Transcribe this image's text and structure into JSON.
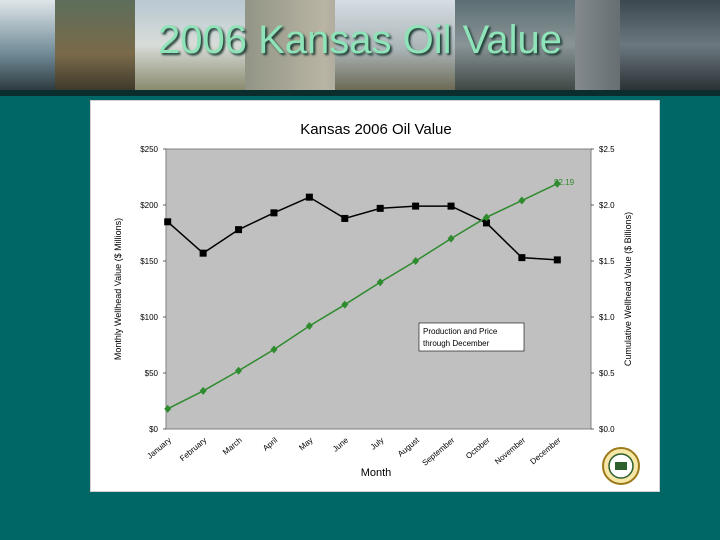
{
  "slide": {
    "title": "2006 Kansas Oil Value"
  },
  "colors": {
    "background": "#006666",
    "title_text": "#8fe3b8",
    "monthly_series": "#000000",
    "cumulative_series": "#2e8b2e",
    "plot_area": "#c0c0c0"
  },
  "chart_data": {
    "type": "line",
    "title": "Kansas 2006 Oil Value",
    "xlabel": "Month",
    "ylabel_left": "Monthly Wellhead Value ($ Millions)",
    "ylabel_right": "Cumulative Wellhead Value ($ Billions)",
    "categories": [
      "January",
      "February",
      "March",
      "April",
      "May",
      "June",
      "July",
      "August",
      "September",
      "October",
      "November",
      "December"
    ],
    "left_axis": {
      "ylim": [
        0,
        250
      ],
      "ticks": [
        "$0",
        "$50",
        "$100",
        "$150",
        "$200",
        "$250"
      ]
    },
    "right_axis": {
      "ylim": [
        0,
        2.5
      ],
      "ticks": [
        "$0.0",
        "$0.5",
        "$1.0",
        "$1.5",
        "$2.0",
        "$2.5"
      ]
    },
    "grid": false,
    "series": [
      {
        "axis": "left",
        "color": "#000000",
        "marker": "square",
        "values": [
          185,
          157,
          178,
          193,
          207,
          188,
          197,
          199,
          199,
          184,
          153,
          151
        ]
      },
      {
        "axis": "right",
        "color": "#2e8b2e",
        "marker": "diamond",
        "values": [
          0.18,
          0.34,
          0.52,
          0.71,
          0.92,
          1.11,
          1.31,
          1.5,
          1.7,
          1.89,
          2.04,
          2.19
        ]
      }
    ],
    "annotations": {
      "end_value_label": "$2.19",
      "note_line1": "Production and Price",
      "note_line2": "through December"
    }
  }
}
